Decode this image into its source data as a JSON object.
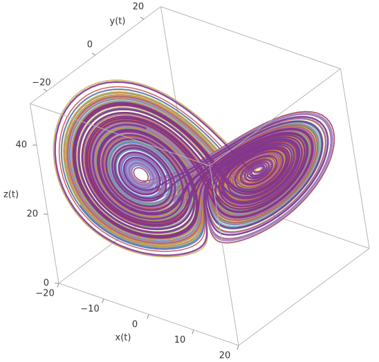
{
  "chart_data": {
    "type": "line3d",
    "x_label": "x(t)",
    "y_label": "y(t)",
    "z_label": "z(t)",
    "xlim": [
      -20,
      20
    ],
    "ylim": [
      -27,
      27
    ],
    "zlim": [
      0,
      52
    ],
    "xticks": [
      {
        "value": -20,
        "label": "−20"
      },
      {
        "value": -10,
        "label": "−10"
      },
      0,
      10,
      20
    ],
    "yticks": [
      {
        "value": -20,
        "label": "−20"
      },
      0,
      20
    ],
    "zticks": [
      0,
      20,
      40
    ]
  }
}
